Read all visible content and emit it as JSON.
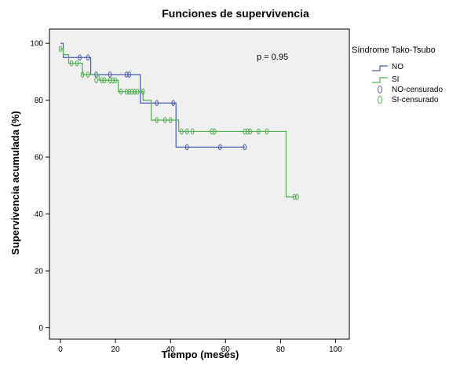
{
  "chart_data": {
    "type": "line",
    "subtype": "kaplan-meier",
    "title": "Funciones de supervivencia",
    "xlabel": "Tiempo (meses)",
    "ylabel": "Supervivencia acumulada (%)",
    "xlim": [
      -4,
      105
    ],
    "ylim": [
      -4,
      105
    ],
    "xticks": [
      0,
      20,
      40,
      60,
      80,
      100
    ],
    "yticks": [
      0,
      20,
      40,
      60,
      80,
      100
    ],
    "grid": false,
    "annotation": "p = 0.95",
    "legend": {
      "title": "Síndrome Tako-Tsubo",
      "position": "right",
      "entries": [
        "NO",
        "SI",
        "NO-censurado",
        "SI-censurado"
      ]
    },
    "series": [
      {
        "name": "NO",
        "color": "#4a5ab4",
        "steps": [
          [
            0,
            100
          ],
          [
            1,
            95
          ],
          [
            11,
            89
          ],
          [
            29,
            79
          ],
          [
            42,
            63.5
          ],
          [
            67,
            63.5
          ]
        ],
        "censored": [
          [
            7,
            95
          ],
          [
            10,
            95
          ],
          [
            13,
            89
          ],
          [
            18,
            89
          ],
          [
            24,
            89
          ],
          [
            25,
            89
          ],
          [
            35,
            79
          ],
          [
            41,
            79
          ],
          [
            46,
            63.5
          ],
          [
            58,
            63.5
          ],
          [
            67,
            63.5
          ]
        ]
      },
      {
        "name": "SI",
        "color": "#52ae52",
        "steps": [
          [
            0,
            98
          ],
          [
            1,
            96
          ],
          [
            3,
            93
          ],
          [
            8,
            89
          ],
          [
            14,
            87
          ],
          [
            21,
            83
          ],
          [
            30,
            80
          ],
          [
            33,
            73
          ],
          [
            43,
            69
          ],
          [
            82,
            46
          ],
          [
            86,
            46
          ]
        ],
        "censored": [
          [
            0,
            98
          ],
          [
            4,
            93
          ],
          [
            6,
            93
          ],
          [
            8,
            89
          ],
          [
            10,
            89
          ],
          [
            13,
            87
          ],
          [
            15,
            87
          ],
          [
            16,
            87
          ],
          [
            18,
            87
          ],
          [
            19,
            87
          ],
          [
            20,
            87
          ],
          [
            22,
            83
          ],
          [
            24,
            83
          ],
          [
            25,
            83
          ],
          [
            26,
            83
          ],
          [
            27,
            83
          ],
          [
            28,
            83
          ],
          [
            30,
            83
          ],
          [
            35,
            73
          ],
          [
            38,
            73
          ],
          [
            40,
            73
          ],
          [
            44,
            69
          ],
          [
            46,
            69
          ],
          [
            48,
            69
          ],
          [
            55,
            69
          ],
          [
            56,
            69
          ],
          [
            67,
            69
          ],
          [
            68,
            69
          ],
          [
            69,
            69
          ],
          [
            72,
            69
          ],
          [
            75,
            69
          ],
          [
            85,
            46
          ],
          [
            86,
            46
          ]
        ]
      }
    ]
  }
}
